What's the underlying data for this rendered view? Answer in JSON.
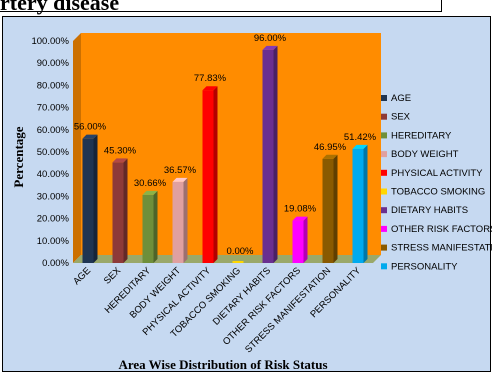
{
  "header": {
    "text": "rtery disease"
  },
  "chart_data": {
    "type": "bar",
    "title": "",
    "ylabel": "Percentage",
    "xlabel": "Area  Wise Distribution of Risk Status",
    "ylim": [
      0,
      100
    ],
    "yticks": [
      "0.00%",
      "10.00%",
      "20.00%",
      "30.00%",
      "40.00%",
      "50.00%",
      "60.00%",
      "70.00%",
      "80.00%",
      "90.00%",
      "100.00%"
    ],
    "categories": [
      "AGE",
      "SEX",
      "HEREDITARY",
      "BODY WEIGHT",
      "PHYSICAL ACTIVITY",
      "TOBACCO SMOKING",
      "DIETARY HABITS",
      "OTHER RISK FACTORS",
      "STRESS MANIFESTATION",
      "PERSONALITY"
    ],
    "values": [
      56.0,
      45.3,
      30.66,
      36.57,
      77.83,
      0.0,
      96.0,
      19.08,
      46.95,
      51.42
    ],
    "data_labels": [
      "56.00%",
      "45.30%",
      "30.66%",
      "36.57%",
      "77.83%",
      "0.00%",
      "96.00%",
      "19.08%",
      "46.95%",
      "51.42%"
    ],
    "colors": [
      "#1f3552",
      "#8e3a38",
      "#6f8f3a",
      "#e0a0a0",
      "#ff0000",
      "#ffd700",
      "#6a2f8f",
      "#ff00ff",
      "#8a5a00",
      "#00aaee"
    ],
    "plot_background": "#ff8c00",
    "chart_background": "#c6d9f1",
    "grid": false,
    "legend_position": "right"
  }
}
